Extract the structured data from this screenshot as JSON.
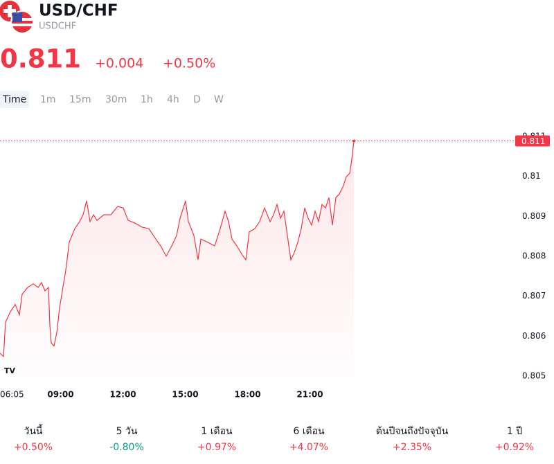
{
  "header": {
    "title": "USD/CHF",
    "symbol": "USDCHF",
    "price": "0.811",
    "change": "+0.004",
    "change_pct": "+0.50%"
  },
  "timeframes": [
    "Time",
    "1m",
    "15m",
    "30m",
    "1h",
    "4h",
    "D",
    "W"
  ],
  "chart_data": {
    "type": "line",
    "color": "#f23645",
    "last_price_label": "0.811",
    "x": [
      365,
      375,
      381,
      395,
      409,
      421,
      429,
      445,
      461,
      475,
      485,
      495,
      505,
      509,
      513,
      521,
      529,
      537,
      545,
      555,
      565,
      581,
      595,
      605,
      615,
      625,
      635,
      645,
      665,
      685,
      705,
      721,
      735,
      755,
      775,
      795,
      815,
      829,
      845,
      861,
      875,
      885,
      901,
      909,
      925,
      937,
      945,
      965,
      985,
      1001,
      1015,
      1025,
      1035,
      1049,
      1065,
      1075,
      1085,
      1101,
      1115,
      1129,
      1145,
      1155,
      1165,
      1175,
      1185,
      1195,
      1205,
      1215,
      1225,
      1235,
      1245,
      1255,
      1265,
      1275,
      1285,
      1295,
      1305,
      1315,
      1325,
      1335,
      1345,
      1355,
      1365,
      1375,
      1381,
      1387
    ],
    "values": [
      0.80557,
      0.80549,
      0.80635,
      0.80661,
      0.80679,
      0.80653,
      0.80705,
      0.80722,
      0.80731,
      0.80722,
      0.80734,
      0.80713,
      0.80722,
      0.80627,
      0.80583,
      0.80575,
      0.80609,
      0.8067,
      0.80713,
      0.80765,
      0.80835,
      0.80869,
      0.80887,
      0.80904,
      0.80939,
      0.80887,
      0.80904,
      0.8089,
      0.80904,
      0.80904,
      0.80925,
      0.80921,
      0.8089,
      0.80883,
      0.80873,
      0.80869,
      0.80843,
      0.80826,
      0.808,
      0.80826,
      0.80852,
      0.80895,
      0.80939,
      0.80887,
      0.80852,
      0.80791,
      0.80843,
      0.80835,
      0.80826,
      0.80869,
      0.80913,
      0.80887,
      0.80843,
      0.80826,
      0.80803,
      0.80791,
      0.80861,
      0.80869,
      0.80887,
      0.80921,
      0.80887,
      0.80904,
      0.8093,
      0.80895,
      0.80913,
      0.80852,
      0.80791,
      0.80809,
      0.80835,
      0.80869,
      0.80921,
      0.80895,
      0.80878,
      0.80913,
      0.80887,
      0.8093,
      0.80921,
      0.80947,
      0.80878,
      0.80947,
      0.80956,
      0.80973,
      0.80999,
      0.81008,
      0.81043,
      0.81089
    ],
    "xlim": [
      365,
      1845
    ],
    "xticks": [
      {
        "value": 365,
        "label": "06:05"
      },
      {
        "value": 540,
        "label": "09:00"
      },
      {
        "value": 720,
        "label": "12:00"
      },
      {
        "value": 900,
        "label": "15:00"
      },
      {
        "value": 1080,
        "label": "18:00"
      },
      {
        "value": 1260,
        "label": "21:00"
      }
    ],
    "ylim": [
      0.80479,
      0.81121
    ],
    "yticks": [
      0.805,
      0.806,
      0.807,
      0.808,
      0.809,
      0.81,
      0.811
    ]
  },
  "performance": [
    {
      "label": "วันนี้",
      "value": "+0.50%",
      "color": "#f23645"
    },
    {
      "label": "5 วัน",
      "value": "-0.80%",
      "color": "#089981"
    },
    {
      "label": "1 เดือน",
      "value": "+0.97%",
      "color": "#f23645"
    },
    {
      "label": "6 เดือน",
      "value": "+4.07%",
      "color": "#f23645"
    },
    {
      "label": "ต้นปีจนถึงปัจจุบัน",
      "value": "+2.35%",
      "color": "#f23645"
    },
    {
      "label": "1 ปี",
      "value": "+0.92%",
      "color": "#f23645"
    }
  ]
}
